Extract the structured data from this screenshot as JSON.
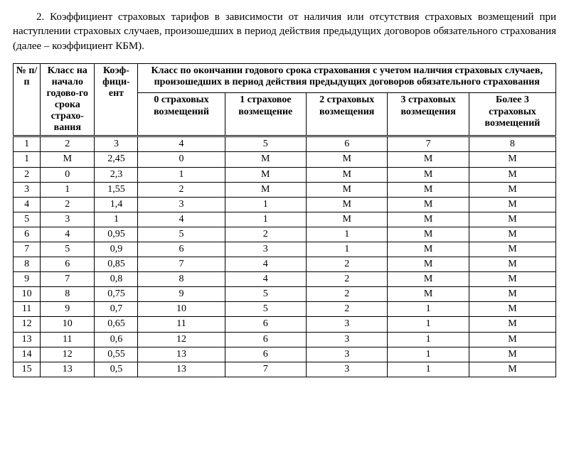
{
  "paragraph": "2. Коэффициент страховых тарифов в зависимости от наличия или отсутствия страховых возмещений при наступлении страховых случаев, произошедших в период действия предыдущих договоров обязательного страхования (далее – коэффициент КБМ).",
  "headers": {
    "col0": "№ п/п",
    "col1": "Класс на начало годово-го срока страхо-вания",
    "col2": "Коэф-фици-ент",
    "span_title": "Класс по окончании годового срока страхования с учетом наличия страховых случаев, произошедших в период действия предыдущих договоров обязательного страхования",
    "sub": [
      "0 страховых возмещений",
      "1 страховое возмещение",
      "2 страховых возмещения",
      "3 страховых возмещения",
      "Более 3 страховых возмещений"
    ]
  },
  "numrow": [
    "1",
    "2",
    "3",
    "4",
    "5",
    "6",
    "7",
    "8"
  ],
  "rows": [
    [
      "1",
      "М",
      "2,45",
      "0",
      "М",
      "М",
      "М",
      "М"
    ],
    [
      "2",
      "0",
      "2,3",
      "1",
      "М",
      "М",
      "М",
      "М"
    ],
    [
      "3",
      "1",
      "1,55",
      "2",
      "М",
      "М",
      "М",
      "М"
    ],
    [
      "4",
      "2",
      "1,4",
      "3",
      "1",
      "М",
      "М",
      "М"
    ],
    [
      "5",
      "3",
      "1",
      "4",
      "1",
      "М",
      "М",
      "М"
    ],
    [
      "6",
      "4",
      "0,95",
      "5",
      "2",
      "1",
      "М",
      "М"
    ],
    [
      "7",
      "5",
      "0,9",
      "6",
      "3",
      "1",
      "М",
      "М"
    ],
    [
      "8",
      "6",
      "0,85",
      "7",
      "4",
      "2",
      "М",
      "М"
    ],
    [
      "9",
      "7",
      "0,8",
      "8",
      "4",
      "2",
      "М",
      "М"
    ],
    [
      "10",
      "8",
      "0,75",
      "9",
      "5",
      "2",
      "М",
      "М"
    ],
    [
      "11",
      "9",
      "0,7",
      "10",
      "5",
      "2",
      "1",
      "М"
    ],
    [
      "12",
      "10",
      "0,65",
      "11",
      "6",
      "3",
      "1",
      "М"
    ],
    [
      "13",
      "11",
      "0,6",
      "12",
      "6",
      "3",
      "1",
      "М"
    ],
    [
      "14",
      "12",
      "0,55",
      "13",
      "6",
      "3",
      "1",
      "М"
    ],
    [
      "15",
      "13",
      "0,5",
      "13",
      "7",
      "3",
      "1",
      "М"
    ]
  ]
}
